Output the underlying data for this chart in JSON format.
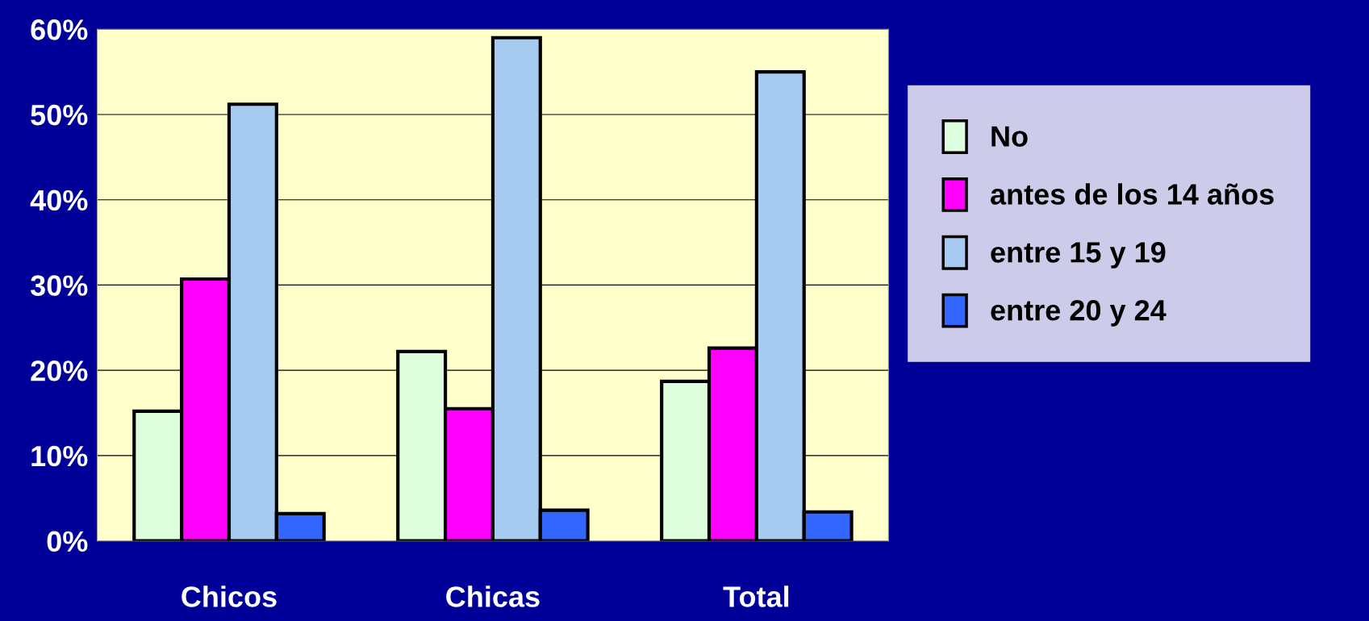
{
  "chart_data": {
    "type": "bar",
    "categories": [
      "Chicos",
      "Chicas",
      "Total"
    ],
    "series": [
      {
        "name": "No",
        "color": "#ddffdd",
        "values": [
          15.2,
          22.2,
          18.7
        ]
      },
      {
        "name": "antes de los 14 años",
        "color": "#ff00ff",
        "values": [
          30.7,
          15.5,
          22.6
        ]
      },
      {
        "name": "entre 15 y 19",
        "color": "#a6caf0",
        "values": [
          51.2,
          59.0,
          55.0
        ]
      },
      {
        "name": "entre 20 y 24",
        "color": "#3366ff",
        "values": [
          3.2,
          3.6,
          3.4
        ]
      }
    ],
    "ylim": [
      0,
      60
    ],
    "yticks": [
      {
        "value": 0,
        "label": "0%"
      },
      {
        "value": 10,
        "label": "10%"
      },
      {
        "value": 20,
        "label": "20%"
      },
      {
        "value": 30,
        "label": "30%"
      },
      {
        "value": 40,
        "label": "40%"
      },
      {
        "value": 50,
        "label": "50%"
      },
      {
        "value": 60,
        "label": "60%"
      }
    ],
    "grid": "y",
    "legend": "right"
  }
}
